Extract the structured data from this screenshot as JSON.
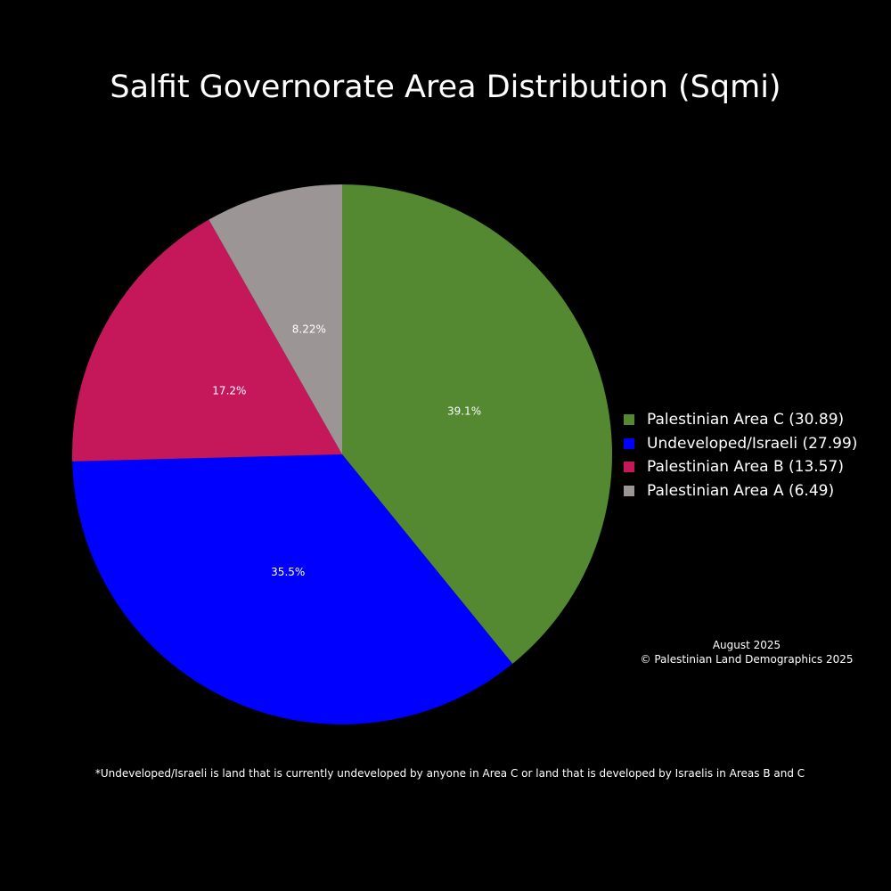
{
  "chart_data": {
    "type": "pie",
    "title": "Salfit Governorate Area Distribution (Sqmi)",
    "slices": [
      {
        "label": "Palestinian Area C (30.89)",
        "value": 30.89,
        "percent_label": "39.1%",
        "color": "#548831"
      },
      {
        "label": "Undeveloped/Israeli (27.99)",
        "value": 27.99,
        "percent_label": "35.5%",
        "color": "#0000ff"
      },
      {
        "label": "Palestinian Area B (13.57)",
        "value": 13.57,
        "percent_label": "17.2%",
        "color": "#c4185b"
      },
      {
        "label": "Palestinian Area A (6.49)",
        "value": 6.49,
        "percent_label": "8.22%",
        "color": "#9b9695"
      }
    ],
    "start_angle_deg": 0,
    "direction": "clockwise",
    "legend_position": "right",
    "annotation": [
      "August 2025",
      "© Palestinian Land Demographics 2025"
    ],
    "footnote": "*Undeveloped/Israeli is land that is currently undeveloped by anyone in Area C or land that is developed by Israelis in Areas B and C"
  }
}
